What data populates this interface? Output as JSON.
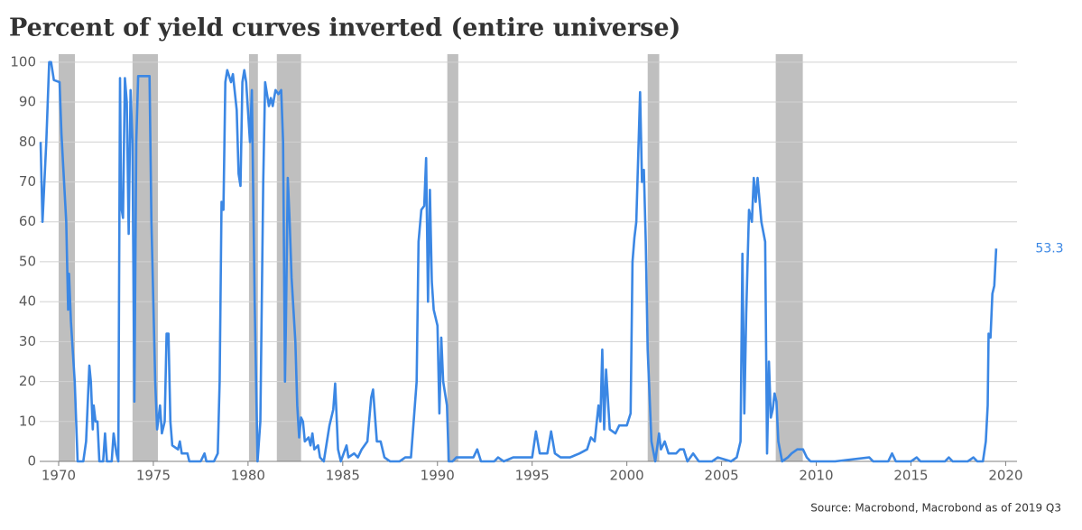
{
  "chart_data": {
    "type": "line",
    "title": "Percent of yield curves inverted (entire universe)",
    "source": "Source: Macrobond, Macrobond as of 2019 Q3",
    "color": "#3b87e4",
    "recession_color": "#bfbfbf",
    "recessions": [
      [
        1970.0,
        1970.86
      ],
      [
        1973.9,
        1975.24
      ],
      [
        1980.05,
        1980.52
      ],
      [
        1981.52,
        1982.8
      ],
      [
        1990.52,
        1991.1
      ],
      [
        2001.1,
        2001.71
      ],
      [
        2007.86,
        2009.29
      ]
    ],
    "x": [
      1969.05,
      1969.15,
      1969.35,
      1969.5,
      1969.6,
      1969.75,
      1970.05,
      1970.15,
      1970.4,
      1970.5,
      1970.55,
      1970.65,
      1970.85,
      1971.0,
      1971.3,
      1971.45,
      1971.62,
      1971.7,
      1971.8,
      1971.85,
      1971.95,
      1972.05,
      1972.15,
      1972.35,
      1972.45,
      1972.55,
      1972.8,
      1972.9,
      1973.05,
      1973.15,
      1973.24,
      1973.3,
      1973.4,
      1973.5,
      1973.6,
      1973.7,
      1973.8,
      1973.9,
      1974.0,
      1974.1,
      1974.2,
      1974.8,
      1974.9,
      1975.1,
      1975.2,
      1975.35,
      1975.45,
      1975.6,
      1975.7,
      1975.8,
      1975.9,
      1976.0,
      1976.3,
      1976.4,
      1976.5,
      1976.8,
      1976.9,
      1977.5,
      1977.7,
      1977.8,
      1978.2,
      1978.4,
      1978.5,
      1978.6,
      1978.7,
      1978.8,
      1978.9,
      1979.1,
      1979.2,
      1979.4,
      1979.5,
      1979.6,
      1979.7,
      1979.8,
      1979.9,
      1980.1,
      1980.2,
      1980.35,
      1980.5,
      1980.65,
      1980.8,
      1980.9,
      1981.0,
      1981.1,
      1981.2,
      1981.3,
      1981.45,
      1981.6,
      1981.75,
      1981.85,
      1981.95,
      1982.0,
      1982.1,
      1982.2,
      1982.3,
      1982.5,
      1982.6,
      1982.7,
      1982.8,
      1982.9,
      1983.0,
      1983.2,
      1983.3,
      1983.4,
      1983.5,
      1983.7,
      1983.8,
      1984.0,
      1984.3,
      1984.5,
      1984.6,
      1984.75,
      1984.9,
      1985.2,
      1985.3,
      1985.6,
      1985.8,
      1986.0,
      1986.3,
      1986.5,
      1986.6,
      1986.8,
      1987.0,
      1987.2,
      1987.5,
      1988.0,
      1988.3,
      1988.6,
      1988.9,
      1989.0,
      1989.15,
      1989.3,
      1989.4,
      1989.5,
      1989.6,
      1989.7,
      1989.8,
      1990.0,
      1990.1,
      1990.2,
      1990.3,
      1990.5,
      1990.6,
      1990.8,
      1991.0,
      1991.5,
      1991.9,
      1992.1,
      1992.3,
      1993.0,
      1993.2,
      1993.5,
      1994.0,
      1994.5,
      1995.0,
      1995.2,
      1995.4,
      1995.8,
      1996.0,
      1996.2,
      1996.5,
      1997.0,
      1997.5,
      1997.9,
      1998.1,
      1998.3,
      1998.5,
      1998.6,
      1998.7,
      1998.8,
      1998.9,
      1999.1,
      1999.4,
      1999.6,
      2000.0,
      2000.2,
      2000.3,
      2000.4,
      2000.5,
      2000.7,
      2000.8,
      2000.9,
      2001.0,
      2001.1,
      2001.3,
      2001.5,
      2001.7,
      2001.8,
      2002.0,
      2002.2,
      2002.6,
      2002.8,
      2003.0,
      2003.2,
      2003.5,
      2003.8,
      2004.5,
      2004.8,
      2005.5,
      2005.8,
      2006.0,
      2006.1,
      2006.2,
      2006.3,
      2006.45,
      2006.6,
      2006.7,
      2006.8,
      2006.9,
      2007.1,
      2007.3,
      2007.4,
      2007.5,
      2007.6,
      2007.7,
      2007.8,
      2007.9,
      2008.0,
      2008.2,
      2008.5,
      2008.7,
      2009.0,
      2009.3,
      2009.5,
      2009.7,
      2011.0,
      2012.8,
      2013.0,
      2013.8,
      2014.0,
      2014.2,
      2015.0,
      2015.3,
      2015.5,
      2016.8,
      2017.0,
      2017.2,
      2018.0,
      2018.3,
      2018.5,
      2018.8,
      2018.95,
      2019.05,
      2019.1,
      2019.2,
      2019.3,
      2019.4,
      2019.5
    ],
    "values": [
      80,
      60,
      80,
      100,
      100,
      95.5,
      95,
      82,
      60,
      38,
      47,
      35,
      20,
      0,
      0,
      5,
      24,
      20,
      8,
      14,
      10,
      10,
      0,
      0,
      7,
      0,
      0,
      7,
      2,
      0,
      96,
      64,
      61,
      96,
      90,
      57,
      93,
      80,
      15,
      80,
      96.5,
      96.5,
      60,
      20,
      8,
      14,
      7,
      10,
      32,
      32,
      10,
      4,
      3,
      5,
      2,
      2,
      0,
      0,
      2,
      0,
      0,
      2,
      20,
      65,
      63,
      95,
      98,
      95,
      97,
      88,
      72,
      69,
      95,
      98,
      95,
      80,
      93,
      40,
      0,
      10,
      70,
      95,
      92,
      89,
      91,
      89,
      93,
      92,
      93,
      80,
      20,
      34,
      71,
      60,
      46,
      30,
      14,
      6,
      11,
      10,
      5,
      6,
      4,
      7,
      3,
      4,
      1,
      0,
      9,
      13,
      19.5,
      3,
      0,
      4,
      1,
      2,
      1,
      3,
      5,
      16,
      18,
      5,
      5,
      1,
      0,
      0,
      1,
      1,
      20,
      55,
      63,
      64,
      76,
      40,
      68,
      45,
      38,
      34,
      12,
      31,
      20,
      14,
      0,
      0,
      1,
      1,
      1,
      3,
      0,
      0,
      1,
      0,
      1,
      1,
      1,
      7.5,
      2,
      2,
      7.5,
      2,
      1,
      1,
      2,
      3,
      6,
      5,
      14,
      10,
      28,
      8,
      23,
      8,
      7,
      9,
      9,
      12,
      50,
      56,
      60,
      92.5,
      70,
      73,
      55,
      28,
      5,
      0,
      7,
      3,
      5,
      2,
      2,
      3,
      3,
      0,
      2,
      0,
      0,
      1,
      0,
      1,
      5,
      52,
      12,
      37,
      63,
      60,
      71,
      65,
      71,
      60,
      55,
      2,
      25,
      11,
      13,
      17,
      15,
      5,
      0,
      1,
      2,
      3,
      3,
      1,
      0,
      0,
      1,
      0,
      0,
      2,
      0,
      0,
      1,
      0,
      0,
      1,
      0,
      0,
      1,
      0,
      0,
      5,
      14,
      32,
      31,
      42,
      44,
      53.3
    ],
    "xlim": [
      1969,
      2020.6
    ],
    "ylim": [
      0,
      102
    ],
    "xticks": [
      1970,
      1975,
      1980,
      1985,
      1990,
      1995,
      2000,
      2005,
      2010,
      2015,
      2020
    ],
    "yticks": [
      0,
      10,
      20,
      30,
      40,
      50,
      60,
      70,
      80,
      90,
      100
    ],
    "grid": true
  }
}
